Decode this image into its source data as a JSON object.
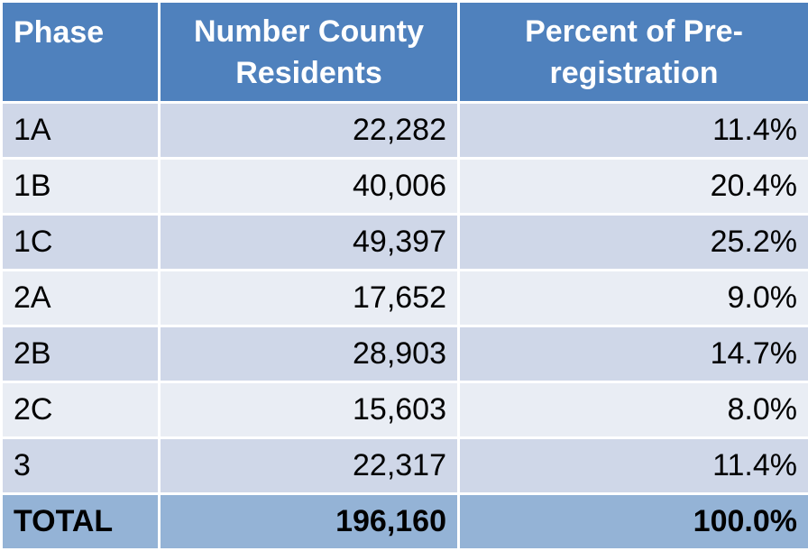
{
  "table": {
    "headers": [
      "Phase",
      "Number County Residents",
      "Percent of Pre-registration"
    ],
    "rows": [
      {
        "phase": "1A",
        "residents": "22,282",
        "percent": "11.4%"
      },
      {
        "phase": "1B",
        "residents": "40,006",
        "percent": "20.4%"
      },
      {
        "phase": "1C",
        "residents": "49,397",
        "percent": "25.2%"
      },
      {
        "phase": "2A",
        "residents": "17,652",
        "percent": "9.0%"
      },
      {
        "phase": "2B",
        "residents": "28,903",
        "percent": "14.7%"
      },
      {
        "phase": "2C",
        "residents": "15,603",
        "percent": "8.0%"
      },
      {
        "phase": "3",
        "residents": "22,317",
        "percent": "11.4%"
      }
    ],
    "total": {
      "phase": "TOTAL",
      "residents": "196,160",
      "percent": "100.0%"
    }
  },
  "colors": {
    "header_bg": "#4f81bd",
    "row_dark": "#cfd7e8",
    "row_light": "#e9edf4",
    "total_bg": "#94b3d6"
  }
}
